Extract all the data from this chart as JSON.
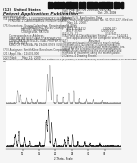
{
  "background_color": "#f5f5f5",
  "page_bg": "#ffffff",
  "barcode_color": "#111111",
  "text_dark": "#222222",
  "text_mid": "#444444",
  "text_light": "#666666",
  "line1_color": "#888888",
  "line2_color": "#111111",
  "xmin": 5,
  "xmax": 40,
  "caption_line1": "Differential X-ray powder diffraction pattern of 4-[4-(amino)-3-fluorophenoxy]-N-methylpyridine-2-carboxamide",
  "caption_line2": "monohydrate (Blue) and polymorph 5 (Gray)",
  "xlabel": "2-Theta - Scale",
  "header1": "(12)  United States",
  "header2": "Patent Application Publication",
  "pub_no": "(10)  Pub. No.: US 2009/0270272 A1",
  "pub_date": "(43)  Pub. Date:                Oct. 29, 2009",
  "peak1_centers": [
    8.5,
    9.3,
    11.2,
    12.8,
    14.5,
    17.6,
    18.3,
    19.1,
    20.5,
    22.3,
    24.1,
    25.6,
    27.2,
    29.4,
    31.5,
    34.2
  ],
  "peak1_heights": [
    0.18,
    0.12,
    0.08,
    0.06,
    0.05,
    0.42,
    0.55,
    0.38,
    0.12,
    0.09,
    0.14,
    0.18,
    0.07,
    0.06,
    0.05,
    0.04
  ],
  "peak1_widths": [
    0.18,
    0.15,
    0.12,
    0.1,
    0.1,
    0.2,
    0.18,
    0.15,
    0.12,
    0.12,
    0.15,
    0.13,
    0.1,
    0.12,
    0.1,
    0.1
  ],
  "peak2_centers": [
    7.8,
    8.9,
    10.6,
    12.2,
    15.2,
    17.2,
    17.9,
    18.8,
    20.0,
    22.8,
    23.8,
    25.2,
    26.8,
    28.9,
    30.5,
    33.5
  ],
  "peak2_heights": [
    0.22,
    0.28,
    0.15,
    0.1,
    0.07,
    0.5,
    0.7,
    0.45,
    0.15,
    0.12,
    0.18,
    0.22,
    0.09,
    0.08,
    0.06,
    0.05
  ],
  "peak2_widths": [
    0.2,
    0.18,
    0.15,
    0.12,
    0.12,
    0.22,
    0.2,
    0.18,
    0.14,
    0.14,
    0.16,
    0.14,
    0.12,
    0.14,
    0.12,
    0.12
  ]
}
